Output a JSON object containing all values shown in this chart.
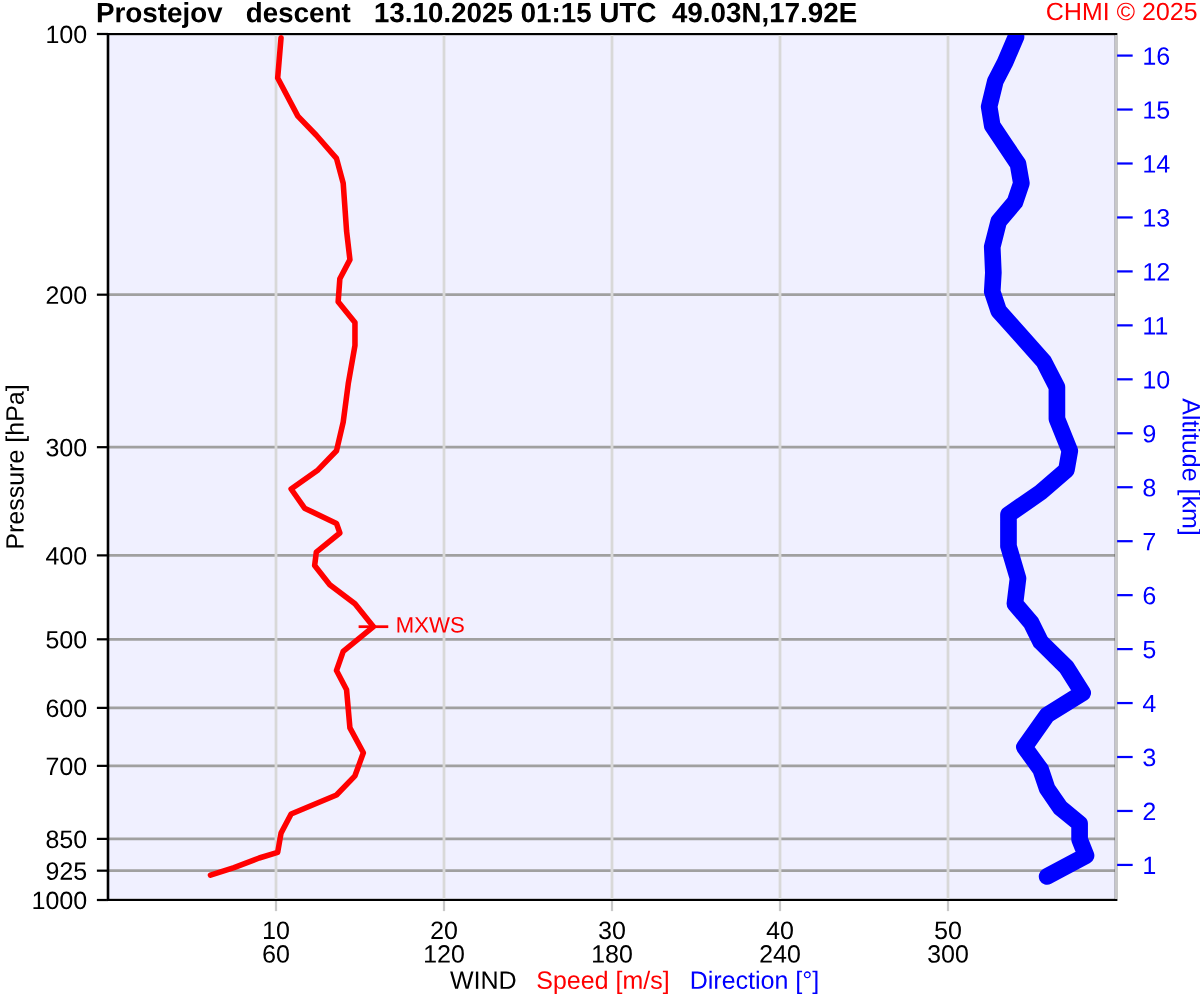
{
  "chart_data": {
    "type": "line",
    "title": "Prostejov   descent   13.10.2025 01:15 UTC  49.03N,17.92E",
    "xlabel": "WIND",
    "ylabel": "Pressure [hPa]",
    "y2label": "Altitude [km]",
    "annotations": [
      {
        "text": "CHMI © 2025"
      },
      {
        "text": "MXWS",
        "x": 15.8,
        "y": 483.5
      }
    ],
    "series": [
      {
        "name": "Speed [m/s]",
        "color": "#ff0000",
        "x": [
          10.3,
          10.1,
          11.3,
          12.4,
          13.6,
          14.0,
          14.2,
          14.4,
          13.8,
          13.7,
          14.7,
          14.7,
          14.3,
          14.0,
          13.6,
          12.5,
          10.9,
          11.7,
          13.6,
          13.8,
          12.4,
          12.3,
          13.2,
          14.7,
          15.8,
          14.0,
          13.6,
          14.2,
          14.4,
          15.2,
          14.7,
          13.6,
          10.9,
          10.3,
          10.1,
          9.0,
          7.5,
          6.1
        ],
        "values": [
          101.0,
          112.4,
          124.4,
          130.9,
          139.2,
          148.7,
          168.8,
          182.2,
          191.7,
          203.8,
          215.4,
          228.9,
          253.5,
          280.6,
          302.9,
          318.7,
          335.3,
          352.8,
          367.4,
          376.9,
          396.5,
          411,
          432.4,
          454.9,
          483.5,
          516.4,
          543.3,
          571.7,
          632.8,
          676.1,
          718.8,
          756.3,
          795.7,
          837.1,
          880.9,
          894.3,
          917.3,
          936.1
        ]
      },
      {
        "name": "Direction [°]",
        "color": "#0000ff",
        "axis": "x2",
        "x": [
          324.3,
          320.4,
          316.9,
          314.7,
          315.8,
          320.4,
          325.0,
          326.2,
          323.9,
          318.1,
          315.8,
          316.2,
          315.8,
          318.1,
          326.2,
          334.2,
          338.9,
          338.9,
          343.5,
          342.3,
          333.1,
          321.6,
          321.6,
          325.0,
          323.9,
          329.7,
          333.1,
          342.3,
          348.1,
          335.4,
          327.3,
          333.1,
          335.4,
          340.1,
          347.0,
          347.0,
          349.3,
          335.4
        ],
        "values": [
          100.7,
          107.8,
          113.4,
          121.3,
          127.6,
          134.3,
          141.3,
          148.7,
          156.4,
          164.6,
          176.1,
          188.6,
          198.4,
          208.8,
          223.4,
          238.9,
          255.7,
          278.2,
          302.9,
          318.7,
          338.2,
          358.9,
          390.3,
          425.1,
          454.9,
          478.5,
          503.5,
          538.6,
          576.6,
          611.5,
          665.9,
          706.8,
          743.7,
          782.4,
          816.2,
          851.1,
          888.6,
          939.3
        ]
      }
    ],
    "xlim": [
      0,
      60
    ],
    "x2lim": [
      0,
      360
    ],
    "xticks": [
      10,
      20,
      30,
      40,
      50
    ],
    "x2ticks": [
      60,
      120,
      180,
      240,
      300
    ],
    "ylim": [
      1000,
      100
    ],
    "yticks": [
      100,
      200,
      300,
      400,
      500,
      600,
      700,
      850,
      925,
      1000
    ],
    "y2lim": [
      0.35,
      16.4
    ],
    "y2ticks": [
      1,
      2,
      3,
      4,
      5,
      6,
      7,
      8,
      9,
      10,
      11,
      12,
      13,
      14,
      15,
      16
    ],
    "log": "y",
    "grid": true,
    "marker": "none",
    "line_style": "solid"
  }
}
